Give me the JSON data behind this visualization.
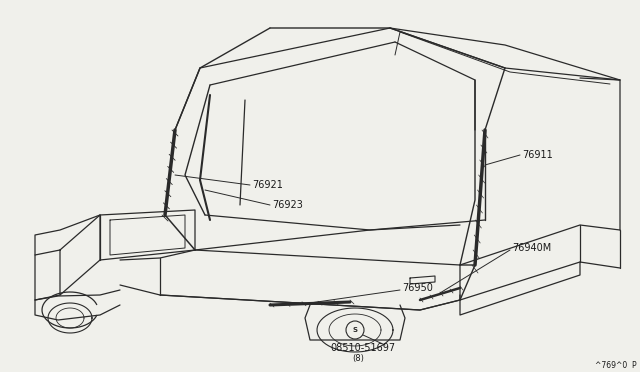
{
  "background_color": "#f0f0eb",
  "line_color": "#2a2a2a",
  "text_color": "#1a1a1a",
  "fig_width": 6.4,
  "fig_height": 3.72,
  "dpi": 100,
  "label_fontsize": 7.0,
  "diagram_id_text": "^769^0  P",
  "screw_text": "08510-51697",
  "screw_sub_text": "(8)"
}
